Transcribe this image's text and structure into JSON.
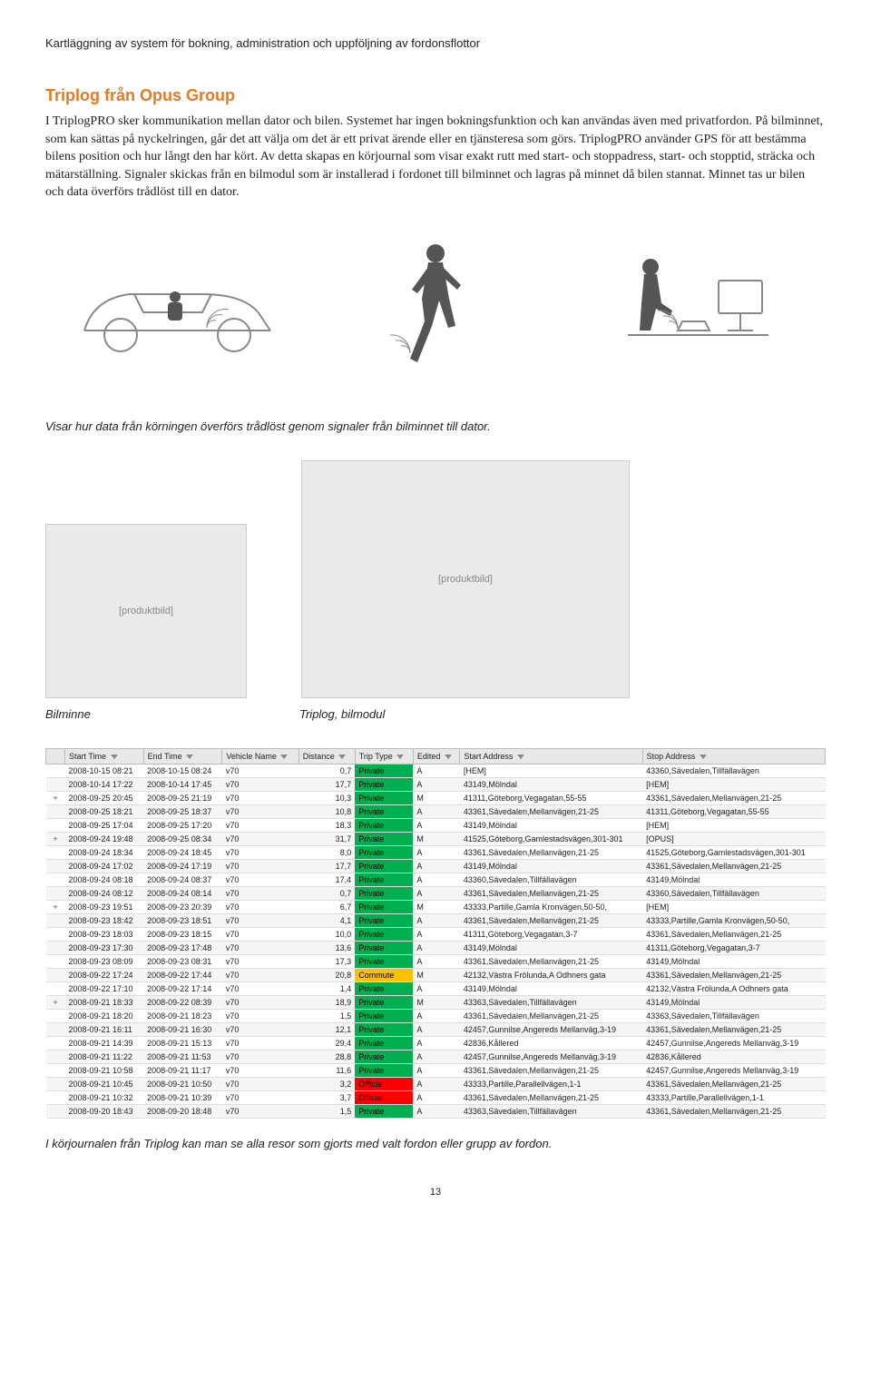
{
  "header": "Kartläggning av system för bokning, administration och uppföljning av fordonsflottor",
  "section_title": "Triplog från Opus Group",
  "body_text": "I TriplogPRO sker kommunikation mellan dator och bilen. Systemet har ingen bokningsfunktion och kan användas även med privatfordon. På bilminnet, som kan sättas på nyckelringen, går det att välja om det är ett privat ärende eller en tjänsteresa som görs. TriplogPRO använder GPS för att bestämma bilens position och hur långt den har kört. Av detta skapas en körjournal som visar exakt rutt med start- och stoppadress, start- och stopptid, sträcka och mätarställning. Signaler skickas från en bilmodul som är installerad i fordonet till bilminnet och lagras på minnet då bilen stannat. Minnet tas ur bilen och data överförs trådlöst till en dator.",
  "caption_diagram": "Visar hur data från körningen överförs trådlöst genom signaler från bilminnet till dator.",
  "photo_label_a": "Bilminne",
  "photo_label_b": "Triplog, bilmodul",
  "caption_table": "I körjournalen från Triplog kan man se alla resor som gjorts med valt fordon eller grupp av fordon.",
  "page_number": "13",
  "table": {
    "columns": [
      "",
      "Start Time",
      "End Time",
      "Vehicle Name",
      "Distance",
      "Trip Type",
      "Edited",
      "Start Address",
      "Stop Address"
    ],
    "trip_type_colors": {
      "Private": "#00b050",
      "Commute": "#ffc000",
      "Official": "#ff0000"
    },
    "rows": [
      {
        "exp": "",
        "start": "2008-10-15 08:21",
        "end": "2008-10-15 08:24",
        "veh": "v70",
        "dist": "0,7",
        "type": "Private",
        "edited": "A",
        "saddr": "[HEM]",
        "taddr": "43360,Sävedalen,Tillfällavägen"
      },
      {
        "exp": "",
        "start": "2008-10-14 17:22",
        "end": "2008-10-14 17:45",
        "veh": "v70",
        "dist": "17,7",
        "type": "Private",
        "edited": "A",
        "saddr": "43149,Mölndal",
        "taddr": "[HEM]"
      },
      {
        "exp": "+",
        "start": "2008-09-25 20:45",
        "end": "2008-09-25 21:19",
        "veh": "v70",
        "dist": "10,3",
        "type": "Private",
        "edited": "M",
        "saddr": "41311,Göteborg,Vegagatan,55-55",
        "taddr": "43361,Sävedalen,Mellanvägen,21-25"
      },
      {
        "exp": "",
        "start": "2008-09-25 18:21",
        "end": "2008-09-25 18:37",
        "veh": "v70",
        "dist": "10,8",
        "type": "Private",
        "edited": "A",
        "saddr": "43361,Sävedalen,Mellanvägen,21-25",
        "taddr": "41311,Göteborg,Vegagatan,55-55"
      },
      {
        "exp": "",
        "start": "2008-09-25 17:04",
        "end": "2008-09-25 17:20",
        "veh": "v70",
        "dist": "18,3",
        "type": "Private",
        "edited": "A",
        "saddr": "43149,Mölndal",
        "taddr": "[HEM]"
      },
      {
        "exp": "+",
        "start": "2008-09-24 19:48",
        "end": "2008-09-25 08:34",
        "veh": "v70",
        "dist": "31,7",
        "type": "Private",
        "edited": "M",
        "saddr": "41525,Göteborg,Gamlestadsvägen,301-301",
        "taddr": "[OPUS]"
      },
      {
        "exp": "",
        "start": "2008-09-24 18:34",
        "end": "2008-09-24 18:45",
        "veh": "v70",
        "dist": "8,0",
        "type": "Private",
        "edited": "A",
        "saddr": "43361,Sävedalen,Mellanvägen,21-25",
        "taddr": "41525,Göteborg,Gamlestadsvägen,301-301"
      },
      {
        "exp": "",
        "start": "2008-09-24 17:02",
        "end": "2008-09-24 17:19",
        "veh": "v70",
        "dist": "17,7",
        "type": "Private",
        "edited": "A",
        "saddr": "43149,Mölndal",
        "taddr": "43361,Sävedalen,Mellanvägen,21-25"
      },
      {
        "exp": "",
        "start": "2008-09-24 08:18",
        "end": "2008-09-24 08:37",
        "veh": "v70",
        "dist": "17,4",
        "type": "Private",
        "edited": "A",
        "saddr": "43360,Sävedalen,Tillfällavägen",
        "taddr": "43149,Mölndal"
      },
      {
        "exp": "",
        "start": "2008-09-24 08:12",
        "end": "2008-09-24 08:14",
        "veh": "v70",
        "dist": "0,7",
        "type": "Private",
        "edited": "A",
        "saddr": "43361,Sävedalen,Mellanvägen,21-25",
        "taddr": "43360,Sävedalen,Tillfällavägen"
      },
      {
        "exp": "+",
        "start": "2008-09-23 19:51",
        "end": "2008-09-23 20:39",
        "veh": "v70",
        "dist": "6,7",
        "type": "Private",
        "edited": "M",
        "saddr": "43333,Partille,Gamla Kronvägen,50-50,",
        "taddr": "[HEM]"
      },
      {
        "exp": "",
        "start": "2008-09-23 18:42",
        "end": "2008-09-23 18:51",
        "veh": "v70",
        "dist": "4,1",
        "type": "Private",
        "edited": "A",
        "saddr": "43361,Sävedalen,Mellanvägen,21-25",
        "taddr": "43333,Partille,Gamla Kronvägen,50-50,"
      },
      {
        "exp": "",
        "start": "2008-09-23 18:03",
        "end": "2008-09-23 18:15",
        "veh": "v70",
        "dist": "10,0",
        "type": "Private",
        "edited": "A",
        "saddr": "41311,Göteborg,Vegagatan,3-7",
        "taddr": "43361,Sävedalen,Mellanvägen,21-25"
      },
      {
        "exp": "",
        "start": "2008-09-23 17:30",
        "end": "2008-09-23 17:48",
        "veh": "v70",
        "dist": "13,6",
        "type": "Private",
        "edited": "A",
        "saddr": "43149,Mölndal",
        "taddr": "41311,Göteborg,Vegagatan,3-7"
      },
      {
        "exp": "",
        "start": "2008-09-23 08:09",
        "end": "2008-09-23 08:31",
        "veh": "v70",
        "dist": "17,3",
        "type": "Private",
        "edited": "A",
        "saddr": "43361,Sävedalen,Mellanvägen,21-25",
        "taddr": "43149,Mölndal"
      },
      {
        "exp": "",
        "start": "2008-09-22 17:24",
        "end": "2008-09-22 17:44",
        "veh": "v70",
        "dist": "20,8",
        "type": "Commute",
        "edited": "M",
        "saddr": "42132,Västra Frölunda,A Odhners gata",
        "taddr": "43361,Sävedalen,Mellanvägen,21-25"
      },
      {
        "exp": "",
        "start": "2008-09-22 17:10",
        "end": "2008-09-22 17:14",
        "veh": "v70",
        "dist": "1,4",
        "type": "Private",
        "edited": "A",
        "saddr": "43149,Mölndal",
        "taddr": "42132,Västra Frölunda,A Odhners gata"
      },
      {
        "exp": "+",
        "start": "2008-09-21 18:33",
        "end": "2008-09-22 08:39",
        "veh": "v70",
        "dist": "18,9",
        "type": "Private",
        "edited": "M",
        "saddr": "43363,Sävedalen,Tillfällavägen",
        "taddr": "43149,Mölndal"
      },
      {
        "exp": "",
        "start": "2008-09-21 18:20",
        "end": "2008-09-21 18:23",
        "veh": "v70",
        "dist": "1,5",
        "type": "Private",
        "edited": "A",
        "saddr": "43361,Sävedalen,Mellanvägen,21-25",
        "taddr": "43363,Sävedalen,Tillfällavägen"
      },
      {
        "exp": "",
        "start": "2008-09-21 16:11",
        "end": "2008-09-21 16:30",
        "veh": "v70",
        "dist": "12,1",
        "type": "Private",
        "edited": "A",
        "saddr": "42457,Gunnilse,Angereds Mellanväg,3-19",
        "taddr": "43361,Sävedalen,Mellanvägen,21-25"
      },
      {
        "exp": "",
        "start": "2008-09-21 14:39",
        "end": "2008-09-21 15:13",
        "veh": "v70",
        "dist": "29,4",
        "type": "Private",
        "edited": "A",
        "saddr": "42836,Kållered",
        "taddr": "42457,Gunnilse,Angereds Mellanväg,3-19"
      },
      {
        "exp": "",
        "start": "2008-09-21 11:22",
        "end": "2008-09-21 11:53",
        "veh": "v70",
        "dist": "28,8",
        "type": "Private",
        "edited": "A",
        "saddr": "42457,Gunnilse,Angereds Mellanväg,3-19",
        "taddr": "42836,Kållered"
      },
      {
        "exp": "",
        "start": "2008-09-21 10:58",
        "end": "2008-09-21 11:17",
        "veh": "v70",
        "dist": "11,6",
        "type": "Private",
        "edited": "A",
        "saddr": "43361,Sävedalen,Mellanvägen,21-25",
        "taddr": "42457,Gunnilse,Angereds Mellanväg,3-19"
      },
      {
        "exp": "",
        "start": "2008-09-21 10:45",
        "end": "2008-09-21 10:50",
        "veh": "v70",
        "dist": "3,2",
        "type": "Official",
        "edited": "A",
        "saddr": "43333,Partille,Parallellvägen,1-1",
        "taddr": "43361,Sävedalen,Mellanvägen,21-25"
      },
      {
        "exp": "",
        "start": "2008-09-21 10:32",
        "end": "2008-09-21 10:39",
        "veh": "v70",
        "dist": "3,7",
        "type": "Official",
        "edited": "A",
        "saddr": "43361,Sävedalen,Mellanvägen,21-25",
        "taddr": "43333,Partille,Parallellvägen,1-1"
      },
      {
        "exp": "",
        "start": "2008-09-20 18:43",
        "end": "2008-09-20 18:48",
        "veh": "v70",
        "dist": "1,5",
        "type": "Private",
        "edited": "A",
        "saddr": "43363,Sävedalen,Tillfällavägen",
        "taddr": "43361,Sävedalen,Mellanvägen,21-25"
      }
    ]
  }
}
